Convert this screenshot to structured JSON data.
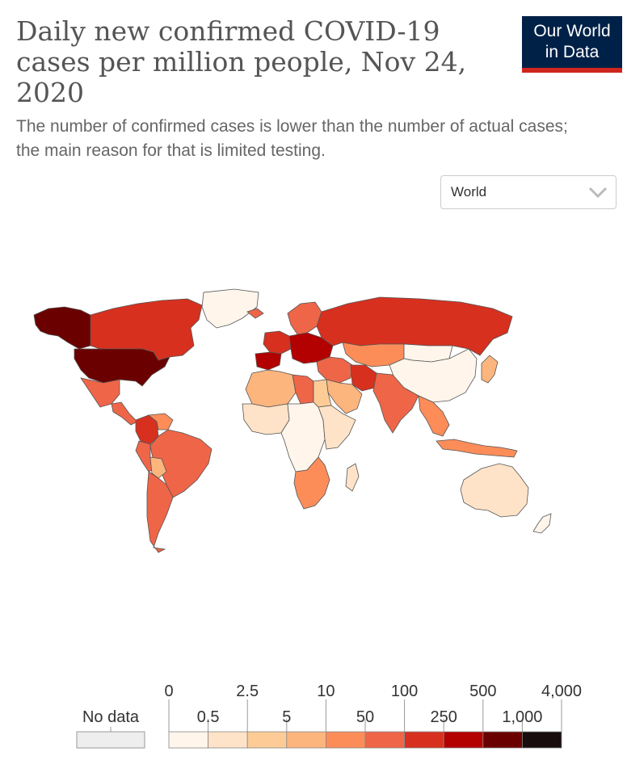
{
  "header": {
    "title": "Daily new confirmed COVID-19 cases per million people, Nov 24, 2020",
    "subtitle": "The number of confirmed cases is lower than the number of actual cases; the main reason for that is limited testing."
  },
  "logo": {
    "line1": "Our World",
    "line2": "in Data"
  },
  "region_select": {
    "value": "World"
  },
  "icons": {
    "dropdown": "chevron-down-icon",
    "logo": "owid-logo"
  },
  "colors": {
    "no_data": "#eeeeee",
    "border": "#555555",
    "scale": [
      "#fff5eb",
      "#fee3c8",
      "#fdcc96",
      "#fdb57e",
      "#fc8d59",
      "#ef6548",
      "#d7301f",
      "#b30000",
      "#6b0000",
      "#180c0c"
    ]
  },
  "legend": {
    "no_data_label": "No data",
    "bins": [
      {
        "from": "0",
        "to": "0.5",
        "color": "#fff5eb"
      },
      {
        "from": "0.5",
        "to": "2.5",
        "color": "#fee3c8"
      },
      {
        "from": "2.5",
        "to": "5",
        "color": "#fdcc96"
      },
      {
        "from": "5",
        "to": "10",
        "color": "#fdb57e"
      },
      {
        "from": "10",
        "to": "50",
        "color": "#fc8d59"
      },
      {
        "from": "50",
        "to": "100",
        "color": "#ef6548"
      },
      {
        "from": "100",
        "to": "250",
        "color": "#d7301f"
      },
      {
        "from": "250",
        "to": "500",
        "color": "#b30000"
      },
      {
        "from": "500",
        "to": "1,000",
        "color": "#6b0000"
      },
      {
        "from": "1,000",
        "to": "4,000",
        "color": "#180c0c"
      }
    ],
    "top_labels": [
      "0",
      "2.5",
      "10",
      "100",
      "500",
      "4,000"
    ],
    "bottom_labels": [
      "0.5",
      "5",
      "50",
      "250",
      "1,000"
    ]
  },
  "map_regions": [
    {
      "name": "alaska",
      "bin": 8
    },
    {
      "name": "canada",
      "bin": 6
    },
    {
      "name": "greenland",
      "bin": 0
    },
    {
      "name": "usa",
      "bin": 8
    },
    {
      "name": "mexico",
      "bin": 5
    },
    {
      "name": "central-america",
      "bin": 5
    },
    {
      "name": "colombia",
      "bin": 6
    },
    {
      "name": "venezuela",
      "bin": 4
    },
    {
      "name": "brazil",
      "bin": 5
    },
    {
      "name": "peru",
      "bin": 5
    },
    {
      "name": "bolivia",
      "bin": 3
    },
    {
      "name": "argentina-chile",
      "bin": 5
    },
    {
      "name": "iceland",
      "bin": 5
    },
    {
      "name": "scandinavia",
      "bin": 5
    },
    {
      "name": "western-europe",
      "bin": 6
    },
    {
      "name": "spain",
      "bin": 7
    },
    {
      "name": "central-europe",
      "bin": 7
    },
    {
      "name": "russia",
      "bin": 6
    },
    {
      "name": "kazakhstan",
      "bin": 4
    },
    {
      "name": "mongolia",
      "bin": 0
    },
    {
      "name": "china",
      "bin": 0
    },
    {
      "name": "middle-east",
      "bin": 5
    },
    {
      "name": "iran",
      "bin": 6
    },
    {
      "name": "saudi-arabia",
      "bin": 3
    },
    {
      "name": "india",
      "bin": 5
    },
    {
      "name": "southeast-asia",
      "bin": 4
    },
    {
      "name": "indonesia",
      "bin": 4
    },
    {
      "name": "japan",
      "bin": 3
    },
    {
      "name": "north-africa",
      "bin": 3
    },
    {
      "name": "libya",
      "bin": 5
    },
    {
      "name": "egypt",
      "bin": 2
    },
    {
      "name": "west-africa",
      "bin": 1
    },
    {
      "name": "central-africa",
      "bin": 0
    },
    {
      "name": "east-africa",
      "bin": 1
    },
    {
      "name": "southern-africa",
      "bin": 4
    },
    {
      "name": "madagascar",
      "bin": 1
    },
    {
      "name": "australia",
      "bin": 1
    },
    {
      "name": "new-zealand",
      "bin": 0
    }
  ]
}
